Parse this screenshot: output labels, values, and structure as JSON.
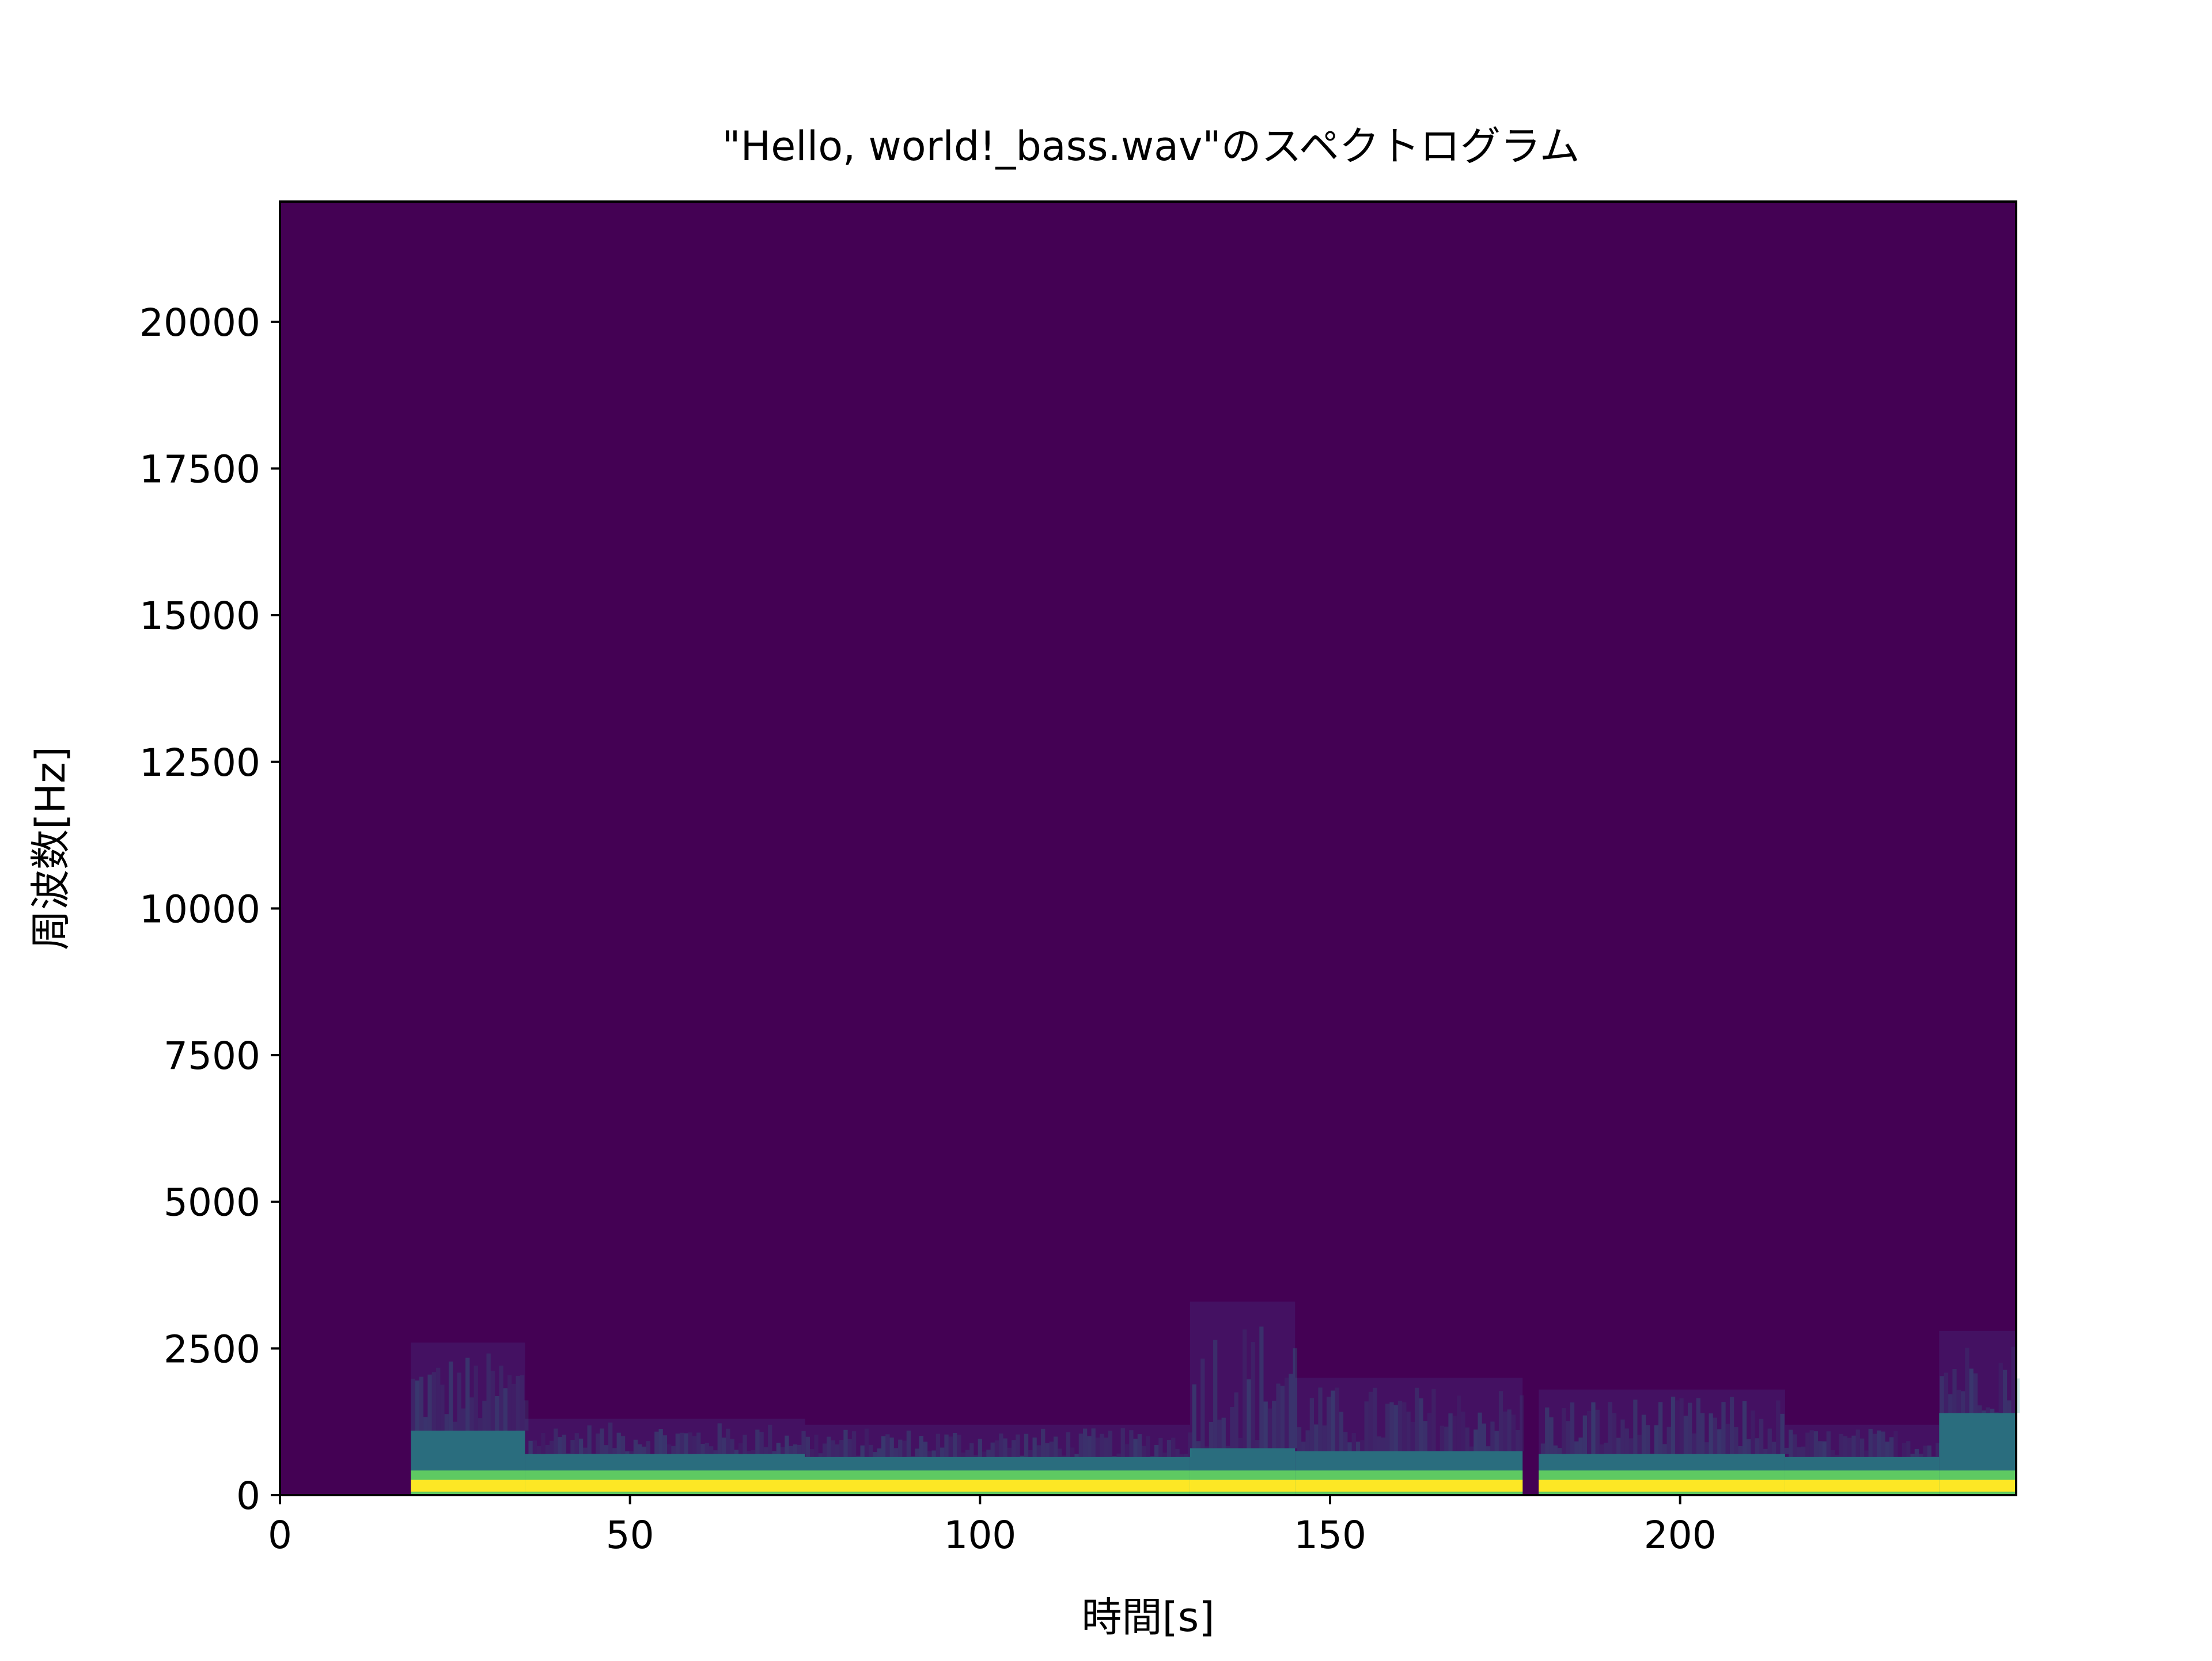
{
  "chart_data": {
    "type": "heatmap",
    "title": "\"Hello, world!_bass.wav\"のスペクトログラム",
    "xlabel": "時間[s]",
    "ylabel": "周波数[Hz]",
    "xlim": [
      0,
      248
    ],
    "ylim": [
      0,
      22050
    ],
    "x_ticks": [
      0,
      50,
      100,
      150,
      200
    ],
    "x_tick_labels": [
      "0",
      "50",
      "100",
      "150",
      "200"
    ],
    "y_ticks": [
      0,
      2500,
      5000,
      7500,
      10000,
      12500,
      15000,
      17500,
      20000
    ],
    "y_tick_labels": [
      "0",
      "2500",
      "5000",
      "7500",
      "10000",
      "12500",
      "15000",
      "17500",
      "20000"
    ],
    "grid": false,
    "colormap": "viridis",
    "colors": {
      "background": "#440154",
      "low": "#46327e",
      "mid": "#21918c",
      "high": "#5ec962",
      "peak": "#fde725"
    },
    "sound_start_s": 18.7,
    "gaps_s": [
      [
        177.5,
        179.8
      ]
    ],
    "segments": [
      {
        "t_start": 18.7,
        "t_end": 35,
        "band_top_hz": 1100,
        "spread_hz": 2600
      },
      {
        "t_start": 35,
        "t_end": 75,
        "band_top_hz": 700,
        "spread_hz": 1300
      },
      {
        "t_start": 75,
        "t_end": 130,
        "band_top_hz": 650,
        "spread_hz": 1200
      },
      {
        "t_start": 130,
        "t_end": 145,
        "band_top_hz": 800,
        "spread_hz": 3300
      },
      {
        "t_start": 145,
        "t_end": 177.5,
        "band_top_hz": 750,
        "spread_hz": 2000
      },
      {
        "t_start": 179.8,
        "t_end": 215,
        "band_top_hz": 700,
        "spread_hz": 1800
      },
      {
        "t_start": 215,
        "t_end": 237,
        "band_top_hz": 650,
        "spread_hz": 1200
      },
      {
        "t_start": 237,
        "t_end": 248,
        "band_top_hz": 1400,
        "spread_hz": 2800
      }
    ]
  }
}
